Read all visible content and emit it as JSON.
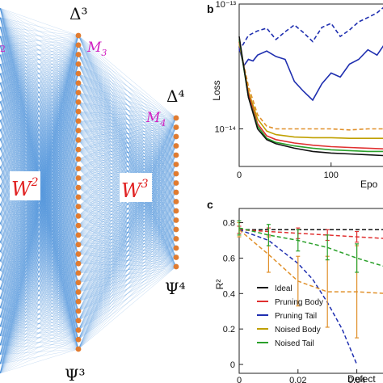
{
  "network": {
    "delta3": "Δ³",
    "delta4": "Δ⁴",
    "psi3": "Ψ³",
    "psi4": "Ψ⁴",
    "m3": "M",
    "m3_sub": "3",
    "m4": "M",
    "m4_sub": "4",
    "w2": "W",
    "w2_sup": "2",
    "w3": "W",
    "w3_sup": "3",
    "m2_partial": "2",
    "colors": {
      "edges": "#4a90d9",
      "nodes": "#e07b30",
      "weight_label": "#e02020",
      "m_label": "#d020c0"
    }
  },
  "chart_data": [
    {
      "panel": "b",
      "type": "line",
      "ylabel": "Loss",
      "xlabel_partial": "Epo",
      "ylog": true,
      "yticks": [
        "10⁻¹³",
        "10⁻¹⁴"
      ],
      "xticks": [
        "0",
        "100"
      ],
      "series": [
        {
          "name": "Pruning Tail (solid)",
          "color": "#1f2fb0",
          "style": "solid",
          "x": [
            0,
            5,
            10,
            15,
            20,
            30,
            40,
            50,
            60,
            70,
            80,
            90,
            100,
            110,
            120,
            130,
            140,
            150,
            160
          ],
          "y": [
            4.5e-14,
            3.2e-14,
            3.6e-14,
            3.5e-14,
            3.9e-14,
            4.2e-14,
            3.8e-14,
            3.6e-14,
            2.4e-14,
            2e-14,
            1.7e-14,
            2.3e-14,
            2.8e-14,
            2.6e-14,
            3.3e-14,
            3.6e-14,
            4.3e-14,
            3.9e-14,
            5e-14
          ]
        },
        {
          "name": "Pruning Tail (dashed)",
          "color": "#1f2fb0",
          "style": "dashed",
          "x": [
            0,
            10,
            20,
            30,
            40,
            50,
            60,
            70,
            80,
            90,
            100,
            110,
            120,
            130,
            140,
            150,
            160
          ],
          "y": [
            4.2e-14,
            5.6e-14,
            6.1e-14,
            6.4e-14,
            5.2e-14,
            6e-14,
            6.8e-14,
            5.9e-14,
            5e-14,
            6.5e-14,
            7e-14,
            5.5e-14,
            6.2e-14,
            7.2e-14,
            7.8e-14,
            8.5e-14,
            9.8e-14
          ]
        },
        {
          "name": "Noised Body (dashed)",
          "color": "#e0902a",
          "style": "dashed",
          "x": [
            0,
            10,
            20,
            30,
            40,
            60,
            80,
            100,
            120,
            140,
            160
          ],
          "y": [
            4.8e-14,
            2.2e-14,
            1.3e-14,
            1.05e-14,
            1e-14,
            1e-14,
            1e-14,
            1e-14,
            9.8e-15,
            1e-14,
            1e-14
          ]
        },
        {
          "name": "Noised Body",
          "color": "#c0a000",
          "style": "solid",
          "x": [
            0,
            10,
            20,
            30,
            40,
            60,
            80,
            100,
            120,
            140,
            160
          ],
          "y": [
            5e-14,
            2e-14,
            1.2e-14,
            9.6e-15,
            9e-15,
            8.6e-15,
            8.5e-15,
            8.5e-15,
            8.4e-15,
            8.4e-15,
            8.4e-15
          ]
        },
        {
          "name": "Pruning Body",
          "color": "#e03030",
          "style": "solid",
          "x": [
            0,
            10,
            20,
            30,
            40,
            60,
            80,
            100,
            120,
            140,
            160
          ],
          "y": [
            5e-14,
            1.9e-14,
            1.1e-14,
            8.8e-15,
            8.2e-15,
            7.7e-15,
            7.4e-15,
            7.2e-15,
            7.1e-15,
            7e-15,
            6.9e-15
          ]
        },
        {
          "name": "Noised Tail",
          "color": "#2aa02a",
          "style": "solid",
          "x": [
            0,
            10,
            20,
            30,
            40,
            60,
            80,
            100,
            120,
            140,
            160
          ],
          "y": [
            5.2e-14,
            1.8e-14,
            1.05e-14,
            8.4e-15,
            7.8e-15,
            7.3e-15,
            7e-15,
            6.8e-15,
            6.7e-15,
            6.6e-15,
            6.6e-15
          ]
        },
        {
          "name": "Ideal",
          "color": "#111111",
          "style": "solid",
          "x": [
            0,
            10,
            20,
            30,
            40,
            60,
            80,
            100,
            120,
            140,
            160
          ],
          "y": [
            5.5e-14,
            1.8e-14,
            1e-14,
            8.2e-15,
            7.6e-15,
            7e-15,
            6.6e-15,
            6.4e-15,
            6.3e-15,
            6.2e-15,
            6.1e-15
          ]
        }
      ],
      "xlim": [
        0,
        160
      ],
      "ylim": [
        5e-15,
        1e-13
      ]
    },
    {
      "panel": "c",
      "type": "line",
      "ylabel": "R²",
      "xlabel_partial": "Defect",
      "yticks": [
        "0",
        "0.2",
        "0.4",
        "0.6",
        "0.8"
      ],
      "xticks": [
        "0",
        "0.02",
        "0.04"
      ],
      "xlim": [
        0,
        0.05
      ],
      "ylim": [
        -0.05,
        0.88
      ],
      "legend": [
        "Ideal",
        "Pruning Body",
        "Pruning Tail",
        "Noised Body",
        "Noised Tail"
      ],
      "legend_colors": [
        "#111111",
        "#e03030",
        "#1f2fb0",
        "#c0a000",
        "#2aa02a"
      ],
      "series": [
        {
          "name": "Ideal",
          "color": "#111111",
          "x": [
            0,
            0.01,
            0.02,
            0.03,
            0.04,
            0.05
          ],
          "y": [
            0.76,
            0.76,
            0.76,
            0.76,
            0.76,
            0.76
          ],
          "err": [
            0,
            0,
            0,
            0,
            0,
            0
          ]
        },
        {
          "name": "Pruning Body",
          "color": "#e03030",
          "x": [
            0,
            0.01,
            0.02,
            0.03,
            0.04,
            0.05
          ],
          "y": [
            0.76,
            0.75,
            0.74,
            0.73,
            0.72,
            0.71
          ],
          "err": [
            0.02,
            0.02,
            0.03,
            0.03,
            0.03,
            0.04
          ]
        },
        {
          "name": "Pruning Tail",
          "color": "#1f2fb0",
          "x": [
            0,
            0.01,
            0.02,
            0.025,
            0.03,
            0.035,
            0.04
          ],
          "y": [
            0.76,
            0.7,
            0.57,
            0.48,
            0.35,
            0.2,
            0.0
          ],
          "err": [
            0,
            0,
            0,
            0,
            0,
            0,
            0
          ]
        },
        {
          "name": "Noised Body",
          "color": "#e0902a",
          "x": [
            0,
            0.01,
            0.02,
            0.03,
            0.04,
            0.05
          ],
          "y": [
            0.76,
            0.62,
            0.47,
            0.41,
            0.41,
            0.4
          ],
          "err": [
            0.04,
            0.1,
            0.14,
            0.2,
            0.26,
            0.3
          ]
        },
        {
          "name": "Noised Tail",
          "color": "#2aa02a",
          "x": [
            0,
            0.01,
            0.02,
            0.03,
            0.04,
            0.05
          ],
          "y": [
            0.77,
            0.73,
            0.7,
            0.66,
            0.6,
            0.55
          ],
          "err": [
            0.04,
            0.06,
            0.06,
            0.07,
            0.08,
            0.1
          ]
        }
      ]
    }
  ]
}
